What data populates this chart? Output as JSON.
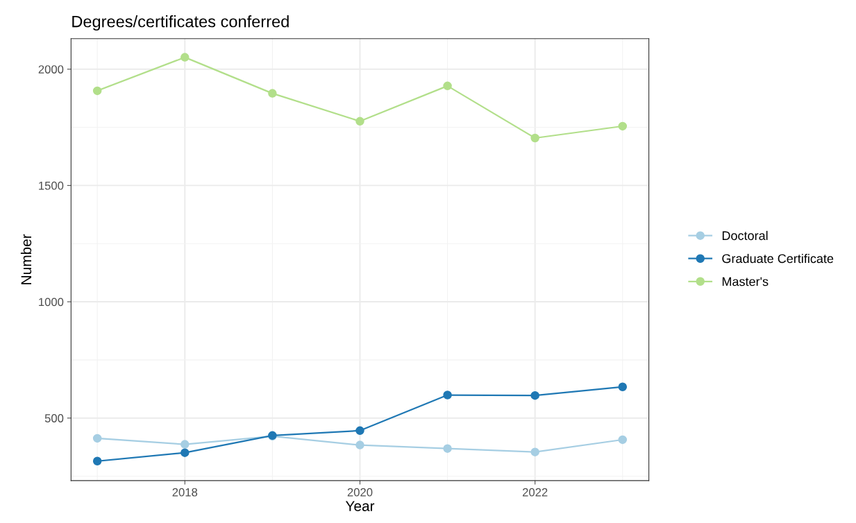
{
  "chart_data": {
    "type": "line",
    "title": "Degrees/certificates conferred",
    "xlabel": "Year",
    "ylabel": "Number",
    "x": [
      2017,
      2018,
      2019,
      2020,
      2021,
      2022,
      2023
    ],
    "series": [
      {
        "name": "Doctoral",
        "color": "#a6cee3",
        "values": [
          413,
          387,
          422,
          384,
          369,
          354,
          407
        ]
      },
      {
        "name": "Graduate Certificate",
        "color": "#1f78b4",
        "values": [
          315,
          351,
          425,
          446,
          599,
          597,
          634
        ]
      },
      {
        "name": "Master's",
        "color": "#b2df8a",
        "values": [
          1907,
          2051,
          1896,
          1776,
          1928,
          1704,
          1755
        ]
      }
    ],
    "xlim": [
      2016.7,
      2023.3
    ],
    "xticks": [
      2018,
      2020,
      2022
    ],
    "ylim": [
      231,
      2131
    ],
    "yticks": [
      500,
      1000,
      1500,
      2000
    ],
    "grid": true,
    "legend": "right",
    "marker": "circle",
    "line_style": "solid"
  }
}
